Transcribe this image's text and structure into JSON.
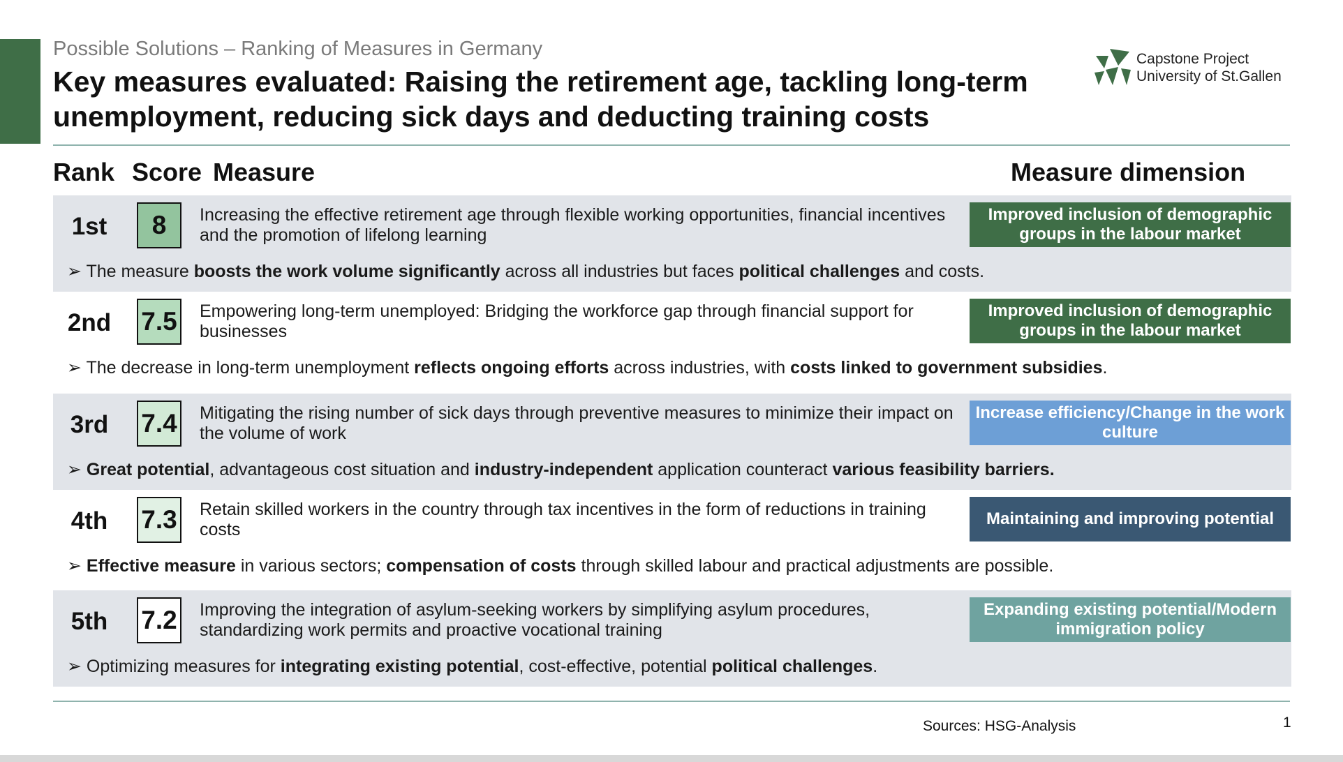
{
  "header": {
    "subtitle": "Possible Solutions – Ranking of Measures in Germany",
    "title": "Key measures evaluated: Raising the retirement age, tackling long-term unemployment, reducing sick days and deducting training costs"
  },
  "logo": {
    "line1": "Capstone Project",
    "line2": "University of St.Gallen",
    "icon": "hsg-logo-icon"
  },
  "columns": {
    "rank": "Rank",
    "score": "Score",
    "measure": "Measure",
    "dimension": "Measure dimension"
  },
  "rows": [
    {
      "rank": "1st",
      "score": "8",
      "score_bg": "#93c49e",
      "measure": "Increasing the effective retirement age through flexible working opportunities, financial incentives and the promotion of lifelong learning",
      "dimension": "Improved inclusion of demographic groups in the labour market",
      "dimension_bg": "#3f6e47",
      "note": [
        {
          "t": "The measure ",
          "b": false
        },
        {
          "t": "boosts the work volume significantly",
          "b": true
        },
        {
          "t": " across all industries but faces ",
          "b": false
        },
        {
          "t": "political challenges",
          "b": true
        },
        {
          "t": " and costs.",
          "b": false
        }
      ]
    },
    {
      "rank": "2nd",
      "score": "7.5",
      "score_bg": "#b5dcbd",
      "measure": "Empowering long-term unemployed: Bridging the workforce gap through financial support for businesses",
      "dimension": "Improved inclusion of demographic groups in the labour market",
      "dimension_bg": "#3f6e47",
      "note": [
        {
          "t": "The decrease in long-term unemployment ",
          "b": false
        },
        {
          "t": "reflects ongoing efforts",
          "b": true
        },
        {
          "t": " across industries, with ",
          "b": false
        },
        {
          "t": "costs linked to government subsidies",
          "b": true
        },
        {
          "t": ".",
          "b": false
        }
      ]
    },
    {
      "rank": "3rd",
      "score": "7.4",
      "score_bg": "#d2ead6",
      "measure": "Mitigating the rising number of sick days through preventive measures to minimize their impact on the volume of work",
      "dimension": "Increase efficiency/Change in the work culture",
      "dimension_bg": "#6d9fd6",
      "note": [
        {
          "t": "Great potential",
          "b": true
        },
        {
          "t": ", advantageous cost situation and ",
          "b": false
        },
        {
          "t": "industry-independent",
          "b": true
        },
        {
          "t": " application counteract ",
          "b": false
        },
        {
          "t": "various feasibility barriers.",
          "b": true
        }
      ]
    },
    {
      "rank": "4th",
      "score": "7.3",
      "score_bg": "#e1f1e4",
      "measure": "Retain skilled workers in the country through tax incentives in the form of reductions in training costs",
      "dimension": "Maintaining and improving potential",
      "dimension_bg": "#3a5873",
      "note": [
        {
          "t": "Effective measure",
          "b": true
        },
        {
          "t": " in various sectors; ",
          "b": false
        },
        {
          "t": "compensation of costs",
          "b": true
        },
        {
          "t": " through skilled labour and practical adjustments are possible.",
          "b": false
        }
      ]
    },
    {
      "rank": "5th",
      "score": "7.2",
      "score_bg": "#ffffff",
      "measure": "Improving the integration of asylum-seeking workers by simplifying asylum procedures, standardizing work permits and proactive vocational training",
      "dimension": "Expanding existing potential/Modern immigration policy",
      "dimension_bg": "#6fa3a0",
      "note": [
        {
          "t": "Optimizing measures for ",
          "b": false
        },
        {
          "t": "integrating existing potential",
          "b": true
        },
        {
          "t": ", cost-effective, potential ",
          "b": false
        },
        {
          "t": "political challenges",
          "b": true
        },
        {
          "t": ".",
          "b": false
        }
      ]
    }
  ],
  "footer": {
    "source": "Sources: HSG-Analysis",
    "page": "1"
  }
}
